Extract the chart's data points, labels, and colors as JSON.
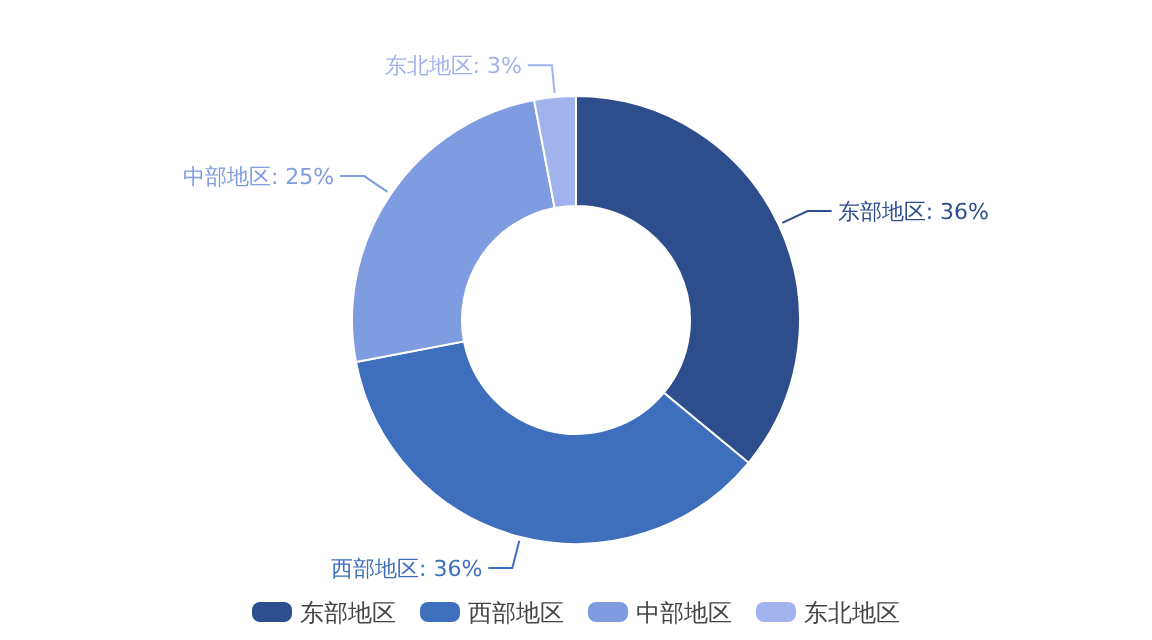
{
  "chart_data": {
    "type": "donut",
    "categories": [
      "东部地区",
      "西部地区",
      "中部地区",
      "东北地区"
    ],
    "values": [
      36,
      36,
      25,
      3
    ],
    "colors": [
      "#2e4d8c",
      "#3e6fbd",
      "#7f9ce0",
      "#a0b3ec"
    ],
    "value_labels": [
      "东部地区: 36%",
      "西部地区: 36%",
      "中部地区: 25%",
      "东北地区: 3%"
    ],
    "legend": "bottom"
  }
}
